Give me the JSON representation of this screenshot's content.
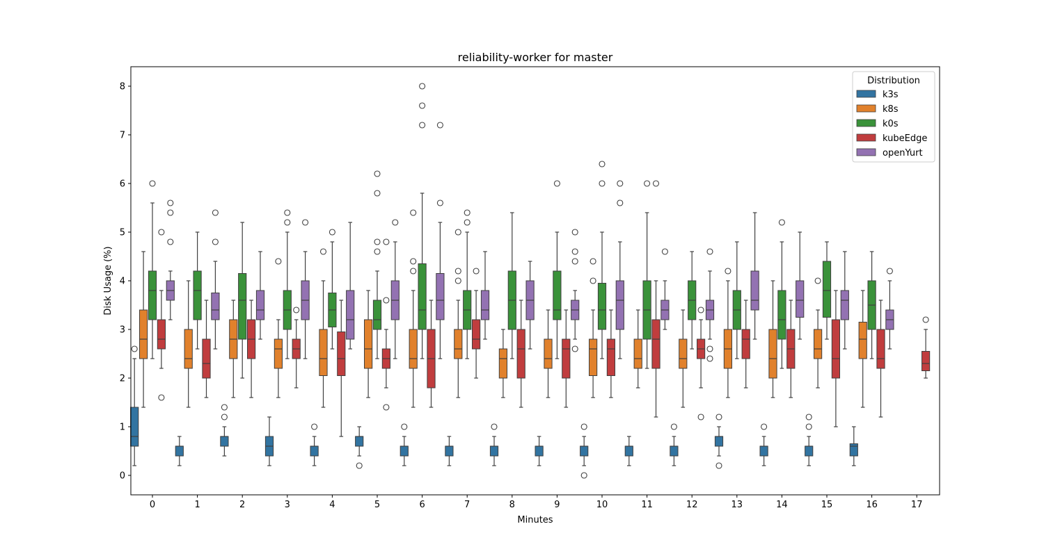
{
  "chart_data": {
    "type": "box",
    "title": "reliability-worker for master",
    "xlabel": "Minutes",
    "ylabel": "Disk Usage (%)",
    "ylim": [
      -0.4,
      8.4
    ],
    "yticks": [
      0,
      1,
      2,
      3,
      4,
      5,
      6,
      7,
      8
    ],
    "categories": [
      "0",
      "1",
      "2",
      "3",
      "4",
      "5",
      "6",
      "7",
      "8",
      "9",
      "10",
      "11",
      "12",
      "13",
      "14",
      "15",
      "16",
      "17"
    ],
    "legend": {
      "title": "Distribution",
      "position": "top-right"
    },
    "series": [
      {
        "name": "k3s",
        "color": "#3274a1",
        "boxes": [
          {
            "cat": 0,
            "q1": 0.6,
            "med": 0.8,
            "q3": 1.4,
            "lo": 0.2,
            "hi": 2.4,
            "out": [
              2.6
            ]
          },
          {
            "cat": 1,
            "q1": 0.4,
            "med": 0.6,
            "q3": 0.6,
            "lo": 0.2,
            "hi": 0.8,
            "out": []
          },
          {
            "cat": 2,
            "q1": 0.6,
            "med": 0.8,
            "q3": 0.8,
            "lo": 0.4,
            "hi": 1.0,
            "out": [
              1.2,
              1.4
            ]
          },
          {
            "cat": 3,
            "q1": 0.4,
            "med": 0.6,
            "q3": 0.8,
            "lo": 0.2,
            "hi": 1.2,
            "out": []
          },
          {
            "cat": 4,
            "q1": 0.4,
            "med": 0.6,
            "q3": 0.6,
            "lo": 0.2,
            "hi": 0.8,
            "out": [
              1.0
            ]
          },
          {
            "cat": 5,
            "q1": 0.6,
            "med": 0.8,
            "q3": 0.8,
            "lo": 0.4,
            "hi": 1.0,
            "out": [
              0.2
            ]
          },
          {
            "cat": 6,
            "q1": 0.4,
            "med": 0.6,
            "q3": 0.6,
            "lo": 0.2,
            "hi": 0.8,
            "out": [
              1.0
            ]
          },
          {
            "cat": 7,
            "q1": 0.4,
            "med": 0.6,
            "q3": 0.6,
            "lo": 0.2,
            "hi": 0.8,
            "out": []
          },
          {
            "cat": 8,
            "q1": 0.4,
            "med": 0.6,
            "q3": 0.6,
            "lo": 0.2,
            "hi": 0.8,
            "out": [
              1.0
            ]
          },
          {
            "cat": 9,
            "q1": 0.4,
            "med": 0.6,
            "q3": 0.6,
            "lo": 0.2,
            "hi": 0.8,
            "out": []
          },
          {
            "cat": 10,
            "q1": 0.4,
            "med": 0.6,
            "q3": 0.6,
            "lo": 0.2,
            "hi": 0.8,
            "out": [
              1.0,
              0.0
            ]
          },
          {
            "cat": 11,
            "q1": 0.4,
            "med": 0.6,
            "q3": 0.6,
            "lo": 0.2,
            "hi": 0.8,
            "out": []
          },
          {
            "cat": 12,
            "q1": 0.4,
            "med": 0.6,
            "q3": 0.6,
            "lo": 0.2,
            "hi": 0.8,
            "out": [
              1.0
            ]
          },
          {
            "cat": 13,
            "q1": 0.6,
            "med": 0.8,
            "q3": 0.8,
            "lo": 0.4,
            "hi": 1.0,
            "out": [
              1.2,
              0.2
            ]
          },
          {
            "cat": 14,
            "q1": 0.4,
            "med": 0.6,
            "q3": 0.6,
            "lo": 0.2,
            "hi": 0.8,
            "out": [
              1.0
            ]
          },
          {
            "cat": 15,
            "q1": 0.4,
            "med": 0.6,
            "q3": 0.6,
            "lo": 0.2,
            "hi": 0.8,
            "out": [
              1.0,
              1.2
            ]
          },
          {
            "cat": 16,
            "q1": 0.4,
            "med": 0.6,
            "q3": 0.65,
            "lo": 0.2,
            "hi": 1.0,
            "out": []
          }
        ]
      },
      {
        "name": "k8s",
        "color": "#e1812c",
        "boxes": [
          {
            "cat": 0,
            "q1": 2.4,
            "med": 2.8,
            "q3": 3.4,
            "lo": 1.4,
            "hi": 4.6,
            "out": []
          },
          {
            "cat": 1,
            "q1": 2.2,
            "med": 2.4,
            "q3": 3.0,
            "lo": 1.4,
            "hi": 4.0,
            "out": []
          },
          {
            "cat": 2,
            "q1": 2.4,
            "med": 2.8,
            "q3": 3.2,
            "lo": 1.6,
            "hi": 3.6,
            "out": []
          },
          {
            "cat": 3,
            "q1": 2.2,
            "med": 2.6,
            "q3": 2.8,
            "lo": 1.6,
            "hi": 3.2,
            "out": [
              4.4
            ]
          },
          {
            "cat": 4,
            "q1": 2.05,
            "med": 2.4,
            "q3": 3.0,
            "lo": 1.4,
            "hi": 4.0,
            "out": [
              4.6
            ]
          },
          {
            "cat": 5,
            "q1": 2.2,
            "med": 2.6,
            "q3": 3.2,
            "lo": 1.6,
            "hi": 3.8,
            "out": []
          },
          {
            "cat": 6,
            "q1": 2.2,
            "med": 2.4,
            "q3": 3.0,
            "lo": 1.4,
            "hi": 3.8,
            "out": [
              4.2,
              4.4,
              5.4
            ]
          },
          {
            "cat": 7,
            "q1": 2.4,
            "med": 2.6,
            "q3": 3.0,
            "lo": 1.6,
            "hi": 3.6,
            "out": [
              4.0,
              4.2,
              5.0
            ]
          },
          {
            "cat": 8,
            "q1": 2.0,
            "med": 2.4,
            "q3": 2.6,
            "lo": 1.6,
            "hi": 3.0,
            "out": []
          },
          {
            "cat": 9,
            "q1": 2.2,
            "med": 2.4,
            "q3": 2.8,
            "lo": 1.6,
            "hi": 3.4,
            "out": []
          },
          {
            "cat": 10,
            "q1": 2.05,
            "med": 2.6,
            "q3": 2.8,
            "lo": 1.6,
            "hi": 3.4,
            "out": [
              4.0,
              4.4
            ]
          },
          {
            "cat": 11,
            "q1": 2.2,
            "med": 2.4,
            "q3": 2.8,
            "lo": 1.8,
            "hi": 3.4,
            "out": []
          },
          {
            "cat": 12,
            "q1": 2.2,
            "med": 2.4,
            "q3": 2.8,
            "lo": 1.4,
            "hi": 3.4,
            "out": []
          },
          {
            "cat": 13,
            "q1": 2.2,
            "med": 2.6,
            "q3": 3.0,
            "lo": 1.6,
            "hi": 4.0,
            "out": [
              4.2
            ]
          },
          {
            "cat": 14,
            "q1": 2.0,
            "med": 2.4,
            "q3": 3.0,
            "lo": 1.6,
            "hi": 4.0,
            "out": []
          },
          {
            "cat": 15,
            "q1": 2.4,
            "med": 2.6,
            "q3": 3.0,
            "lo": 1.8,
            "hi": 3.4,
            "out": [
              4.0
            ]
          },
          {
            "cat": 16,
            "q1": 2.4,
            "med": 2.8,
            "q3": 3.15,
            "lo": 1.4,
            "hi": 3.8,
            "out": []
          }
        ]
      },
      {
        "name": "k0s",
        "color": "#3a923a",
        "boxes": [
          {
            "cat": 0,
            "q1": 3.2,
            "med": 3.8,
            "q3": 4.2,
            "lo": 2.4,
            "hi": 5.6,
            "out": [
              6.0
            ]
          },
          {
            "cat": 1,
            "q1": 3.2,
            "med": 3.8,
            "q3": 4.2,
            "lo": 2.6,
            "hi": 5.0,
            "out": []
          },
          {
            "cat": 2,
            "q1": 2.8,
            "med": 3.6,
            "q3": 4.15,
            "lo": 2.0,
            "hi": 5.2,
            "out": []
          },
          {
            "cat": 3,
            "q1": 3.0,
            "med": 3.4,
            "q3": 3.8,
            "lo": 2.4,
            "hi": 5.0,
            "out": [
              5.2,
              5.4
            ]
          },
          {
            "cat": 4,
            "q1": 3.05,
            "med": 3.4,
            "q3": 3.75,
            "lo": 2.6,
            "hi": 4.8,
            "out": [
              5.0
            ]
          },
          {
            "cat": 5,
            "q1": 3.0,
            "med": 3.2,
            "q3": 3.6,
            "lo": 2.4,
            "hi": 4.2,
            "out": [
              4.6,
              4.8,
              5.8,
              6.2
            ]
          },
          {
            "cat": 6,
            "q1": 3.0,
            "med": 3.4,
            "q3": 4.35,
            "lo": 2.4,
            "hi": 5.8,
            "out": [
              7.2,
              7.6,
              8.0
            ]
          },
          {
            "cat": 7,
            "q1": 3.0,
            "med": 3.4,
            "q3": 3.8,
            "lo": 2.4,
            "hi": 5.0,
            "out": [
              5.2,
              5.4
            ]
          },
          {
            "cat": 8,
            "q1": 3.0,
            "med": 3.6,
            "q3": 4.2,
            "lo": 2.4,
            "hi": 5.4,
            "out": []
          },
          {
            "cat": 9,
            "q1": 3.2,
            "med": 3.4,
            "q3": 4.2,
            "lo": 2.4,
            "hi": 5.0,
            "out": [
              6.0
            ]
          },
          {
            "cat": 10,
            "q1": 3.0,
            "med": 3.4,
            "q3": 3.95,
            "lo": 2.4,
            "hi": 5.0,
            "out": [
              6.0,
              6.4
            ]
          },
          {
            "cat": 11,
            "q1": 2.8,
            "med": 3.4,
            "q3": 4.0,
            "lo": 2.2,
            "hi": 5.4,
            "out": [
              6.0
            ]
          },
          {
            "cat": 12,
            "q1": 3.2,
            "med": 3.6,
            "q3": 4.0,
            "lo": 2.6,
            "hi": 4.6,
            "out": []
          },
          {
            "cat": 13,
            "q1": 3.0,
            "med": 3.4,
            "q3": 3.8,
            "lo": 2.4,
            "hi": 4.8,
            "out": []
          },
          {
            "cat": 14,
            "q1": 2.8,
            "med": 3.2,
            "q3": 3.8,
            "lo": 2.2,
            "hi": 4.8,
            "out": [
              5.2
            ]
          },
          {
            "cat": 15,
            "q1": 3.25,
            "med": 3.8,
            "q3": 4.4,
            "lo": 2.8,
            "hi": 4.8,
            "out": []
          },
          {
            "cat": 16,
            "q1": 3.0,
            "med": 3.5,
            "q3": 4.0,
            "lo": 2.4,
            "hi": 4.6,
            "out": []
          }
        ]
      },
      {
        "name": "kubeEdge",
        "color": "#c03d3e",
        "boxes": [
          {
            "cat": 0,
            "q1": 2.6,
            "med": 2.8,
            "q3": 3.2,
            "lo": 2.2,
            "hi": 3.8,
            "out": [
              1.6,
              5.0
            ]
          },
          {
            "cat": 1,
            "q1": 2.0,
            "med": 2.3,
            "q3": 2.8,
            "lo": 1.6,
            "hi": 3.6,
            "out": []
          },
          {
            "cat": 2,
            "q1": 2.4,
            "med": 2.8,
            "q3": 3.2,
            "lo": 1.6,
            "hi": 3.6,
            "out": []
          },
          {
            "cat": 3,
            "q1": 2.4,
            "med": 2.6,
            "q3": 2.8,
            "lo": 1.8,
            "hi": 3.2,
            "out": [
              3.4
            ]
          },
          {
            "cat": 4,
            "q1": 2.05,
            "med": 2.4,
            "q3": 2.95,
            "lo": 0.8,
            "hi": 3.6,
            "out": []
          },
          {
            "cat": 5,
            "q1": 2.2,
            "med": 2.4,
            "q3": 2.6,
            "lo": 1.8,
            "hi": 3.0,
            "out": [
              1.4,
              3.6,
              4.8
            ]
          },
          {
            "cat": 6,
            "q1": 1.8,
            "med": 2.4,
            "q3": 3.0,
            "lo": 1.4,
            "hi": 3.6,
            "out": []
          },
          {
            "cat": 7,
            "q1": 2.6,
            "med": 2.8,
            "q3": 3.2,
            "lo": 2.0,
            "hi": 3.8,
            "out": [
              4.2
            ]
          },
          {
            "cat": 8,
            "q1": 2.0,
            "med": 2.6,
            "q3": 3.0,
            "lo": 1.4,
            "hi": 3.6,
            "out": []
          },
          {
            "cat": 9,
            "q1": 2.0,
            "med": 2.6,
            "q3": 2.8,
            "lo": 1.4,
            "hi": 3.4,
            "out": []
          },
          {
            "cat": 10,
            "q1": 2.05,
            "med": 2.6,
            "q3": 2.8,
            "lo": 1.6,
            "hi": 3.4,
            "out": []
          },
          {
            "cat": 11,
            "q1": 2.2,
            "med": 2.8,
            "q3": 3.2,
            "lo": 1.2,
            "hi": 4.0,
            "out": [
              6.0
            ]
          },
          {
            "cat": 12,
            "q1": 2.4,
            "med": 2.6,
            "q3": 2.8,
            "lo": 1.8,
            "hi": 3.2,
            "out": [
              3.4,
              1.2
            ]
          },
          {
            "cat": 13,
            "q1": 2.4,
            "med": 2.8,
            "q3": 3.0,
            "lo": 1.8,
            "hi": 3.6,
            "out": []
          },
          {
            "cat": 14,
            "q1": 2.2,
            "med": 2.6,
            "q3": 3.0,
            "lo": 1.6,
            "hi": 3.6,
            "out": []
          },
          {
            "cat": 15,
            "q1": 2.0,
            "med": 2.4,
            "q3": 3.2,
            "lo": 1.0,
            "hi": 3.8,
            "out": []
          },
          {
            "cat": 16,
            "q1": 2.2,
            "med": 2.4,
            "q3": 3.0,
            "lo": 1.2,
            "hi": 3.6,
            "out": []
          },
          {
            "cat": 17,
            "q1": 2.15,
            "med": 2.3,
            "q3": 2.55,
            "lo": 2.0,
            "hi": 3.0,
            "out": [
              3.2
            ]
          }
        ]
      },
      {
        "name": "openYurt",
        "color": "#9372b2",
        "boxes": [
          {
            "cat": 0,
            "q1": 3.6,
            "med": 3.8,
            "q3": 4.0,
            "lo": 3.2,
            "hi": 4.2,
            "out": [
              4.8,
              5.4,
              5.6
            ]
          },
          {
            "cat": 1,
            "q1": 3.2,
            "med": 3.4,
            "q3": 3.75,
            "lo": 2.6,
            "hi": 4.4,
            "out": [
              4.8,
              5.4
            ]
          },
          {
            "cat": 2,
            "q1": 3.2,
            "med": 3.4,
            "q3": 3.8,
            "lo": 2.8,
            "hi": 4.6,
            "out": []
          },
          {
            "cat": 3,
            "q1": 3.2,
            "med": 3.6,
            "q3": 4.0,
            "lo": 2.4,
            "hi": 4.6,
            "out": [
              5.2
            ]
          },
          {
            "cat": 4,
            "q1": 2.8,
            "med": 3.2,
            "q3": 3.8,
            "lo": 2.6,
            "hi": 5.2,
            "out": []
          },
          {
            "cat": 5,
            "q1": 3.2,
            "med": 3.6,
            "q3": 4.0,
            "lo": 2.4,
            "hi": 4.8,
            "out": [
              5.2
            ]
          },
          {
            "cat": 6,
            "q1": 3.2,
            "med": 3.6,
            "q3": 4.15,
            "lo": 2.4,
            "hi": 5.2,
            "out": [
              5.6,
              7.2
            ]
          },
          {
            "cat": 7,
            "q1": 3.2,
            "med": 3.4,
            "q3": 3.8,
            "lo": 2.8,
            "hi": 4.6,
            "out": []
          },
          {
            "cat": 8,
            "q1": 3.2,
            "med": 3.6,
            "q3": 4.0,
            "lo": 2.6,
            "hi": 4.4,
            "out": []
          },
          {
            "cat": 9,
            "q1": 3.2,
            "med": 3.4,
            "q3": 3.6,
            "lo": 2.8,
            "hi": 3.8,
            "out": [
              2.6,
              4.4,
              4.6,
              5.0
            ]
          },
          {
            "cat": 10,
            "q1": 3.0,
            "med": 3.6,
            "q3": 4.0,
            "lo": 2.4,
            "hi": 4.8,
            "out": [
              5.6,
              6.0
            ]
          },
          {
            "cat": 11,
            "q1": 3.2,
            "med": 3.4,
            "q3": 3.6,
            "lo": 3.0,
            "hi": 4.0,
            "out": [
              4.6
            ]
          },
          {
            "cat": 12,
            "q1": 3.2,
            "med": 3.4,
            "q3": 3.6,
            "lo": 2.8,
            "hi": 4.2,
            "out": [
              2.4,
              2.6,
              4.6
            ]
          },
          {
            "cat": 13,
            "q1": 3.4,
            "med": 3.6,
            "q3": 4.2,
            "lo": 2.8,
            "hi": 5.4,
            "out": []
          },
          {
            "cat": 14,
            "q1": 3.25,
            "med": 3.6,
            "q3": 4.0,
            "lo": 2.8,
            "hi": 5.0,
            "out": []
          },
          {
            "cat": 15,
            "q1": 3.2,
            "med": 3.6,
            "q3": 3.8,
            "lo": 2.6,
            "hi": 4.6,
            "out": []
          },
          {
            "cat": 16,
            "q1": 3.0,
            "med": 3.2,
            "q3": 3.4,
            "lo": 2.6,
            "hi": 4.0,
            "out": [
              4.2
            ]
          }
        ]
      }
    ]
  }
}
